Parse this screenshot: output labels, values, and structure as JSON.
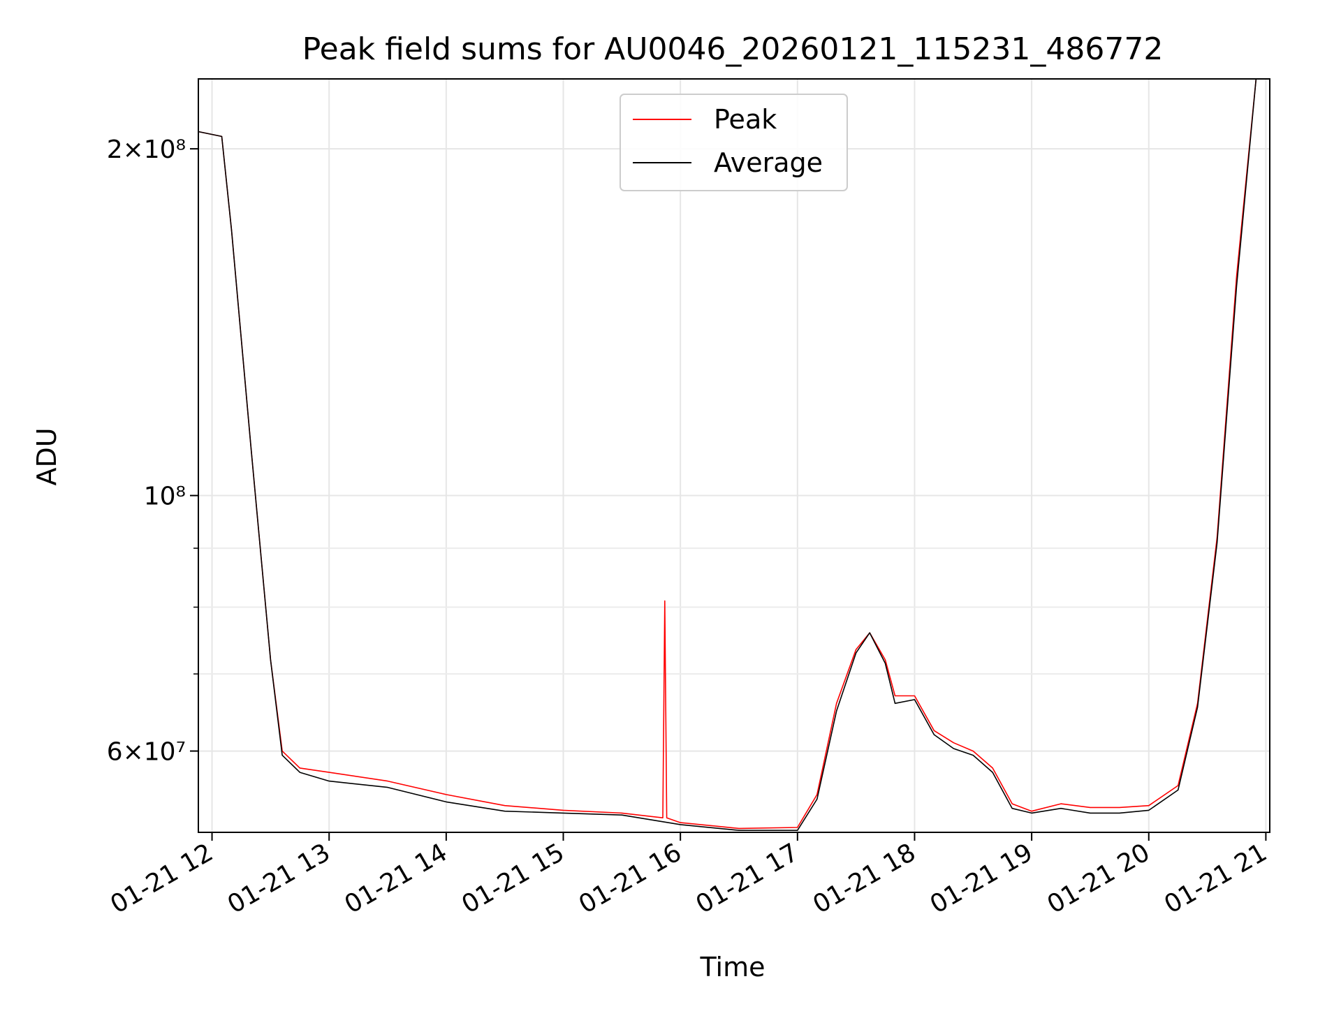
{
  "chart_data": {
    "type": "line",
    "title": "Peak field sums for AU0046_20260121_115231_486772",
    "xlabel": "Time",
    "ylabel": "ADU",
    "y_scale": "log",
    "grid": true,
    "legend_placement": "upper-center",
    "x_tick_labels": [
      "01-21 12",
      "01-21 13",
      "01-21 14",
      "01-21 15",
      "01-21 16",
      "01-21 17",
      "01-21 18",
      "01-21 19",
      "01-21 20",
      "01-21 21"
    ],
    "x_ticks": [
      "2026-01-21 12:00",
      "2026-01-21 13:00",
      "2026-01-21 14:00",
      "2026-01-21 15:00",
      "2026-01-21 16:00",
      "2026-01-21 17:00",
      "2026-01-21 18:00",
      "2026-01-21 19:00",
      "2026-01-21 20:00",
      "2026-01-21 21:00"
    ],
    "xlim": [
      "2026-01-21 11:53",
      "2026-01-21 21:02"
    ],
    "ylim": [
      51000000,
      230000000
    ],
    "y_major_ticks": [
      {
        "value": 60000000,
        "base": "6",
        "exp": "7"
      },
      {
        "value": 100000000,
        "base": "",
        "exp": "8"
      },
      {
        "value": 200000000,
        "base": "2",
        "exp": "8"
      }
    ],
    "y_minor_ticks": [
      70000000,
      80000000,
      90000000
    ],
    "series": [
      {
        "name": "Peak",
        "color": "#ff0000",
        "x": [
          "2026-01-21 11:53",
          "2026-01-21 12:05",
          "2026-01-21 12:10",
          "2026-01-21 12:20",
          "2026-01-21 12:30",
          "2026-01-21 12:36",
          "2026-01-21 12:45",
          "2026-01-21 13:00",
          "2026-01-21 13:30",
          "2026-01-21 14:00",
          "2026-01-21 14:30",
          "2026-01-21 15:00",
          "2026-01-21 15:30",
          "2026-01-21 15:51",
          "2026-01-21 15:52",
          "2026-01-21 15:53",
          "2026-01-21 16:00",
          "2026-01-21 16:30",
          "2026-01-21 17:00",
          "2026-01-21 17:10",
          "2026-01-21 17:20",
          "2026-01-21 17:30",
          "2026-01-21 17:37",
          "2026-01-21 17:45",
          "2026-01-21 17:50",
          "2026-01-21 18:00",
          "2026-01-21 18:10",
          "2026-01-21 18:20",
          "2026-01-21 18:30",
          "2026-01-21 18:40",
          "2026-01-21 18:50",
          "2026-01-21 19:00",
          "2026-01-21 19:15",
          "2026-01-21 19:30",
          "2026-01-21 19:45",
          "2026-01-21 20:00",
          "2026-01-21 20:15",
          "2026-01-21 20:25",
          "2026-01-21 20:35",
          "2026-01-21 20:45",
          "2026-01-21 20:55"
        ],
        "y": [
          207000000,
          205000000,
          170000000,
          110000000,
          72000000,
          60000000,
          58000000,
          57500000,
          56500000,
          55000000,
          53800000,
          53300000,
          53000000,
          52500000,
          81000000,
          52500000,
          52000000,
          51400000,
          51500000,
          55000000,
          66000000,
          73500000,
          76000000,
          72000000,
          67000000,
          67000000,
          62500000,
          61000000,
          60000000,
          58000000,
          54000000,
          53200000,
          54000000,
          53600000,
          53600000,
          53800000,
          56000000,
          66000000,
          92000000,
          155000000,
          230000000
        ]
      },
      {
        "name": "Average",
        "color": "#000000",
        "x": [
          "2026-01-21 11:53",
          "2026-01-21 12:05",
          "2026-01-21 12:10",
          "2026-01-21 12:20",
          "2026-01-21 12:30",
          "2026-01-21 12:36",
          "2026-01-21 12:45",
          "2026-01-21 13:00",
          "2026-01-21 13:30",
          "2026-01-21 14:00",
          "2026-01-21 14:30",
          "2026-01-21 15:00",
          "2026-01-21 15:30",
          "2026-01-21 16:00",
          "2026-01-21 16:30",
          "2026-01-21 17:00",
          "2026-01-21 17:10",
          "2026-01-21 17:20",
          "2026-01-21 17:30",
          "2026-01-21 17:37",
          "2026-01-21 17:45",
          "2026-01-21 17:50",
          "2026-01-21 18:00",
          "2026-01-21 18:10",
          "2026-01-21 18:20",
          "2026-01-21 18:30",
          "2026-01-21 18:40",
          "2026-01-21 18:50",
          "2026-01-21 19:00",
          "2026-01-21 19:15",
          "2026-01-21 19:30",
          "2026-01-21 19:45",
          "2026-01-21 20:00",
          "2026-01-21 20:15",
          "2026-01-21 20:25",
          "2026-01-21 20:35",
          "2026-01-21 20:45",
          "2026-01-21 20:55"
        ],
        "y": [
          207000000,
          205000000,
          170000000,
          110000000,
          72000000,
          59500000,
          57500000,
          56500000,
          55800000,
          54200000,
          53200000,
          53000000,
          52800000,
          51800000,
          51200000,
          51200000,
          54500000,
          65000000,
          73000000,
          76000000,
          71500000,
          66000000,
          66500000,
          62000000,
          60300000,
          59500000,
          57500000,
          53500000,
          53000000,
          53500000,
          53000000,
          53000000,
          53300000,
          55500000,
          65500000,
          91000000,
          152000000,
          230000000
        ]
      }
    ]
  }
}
